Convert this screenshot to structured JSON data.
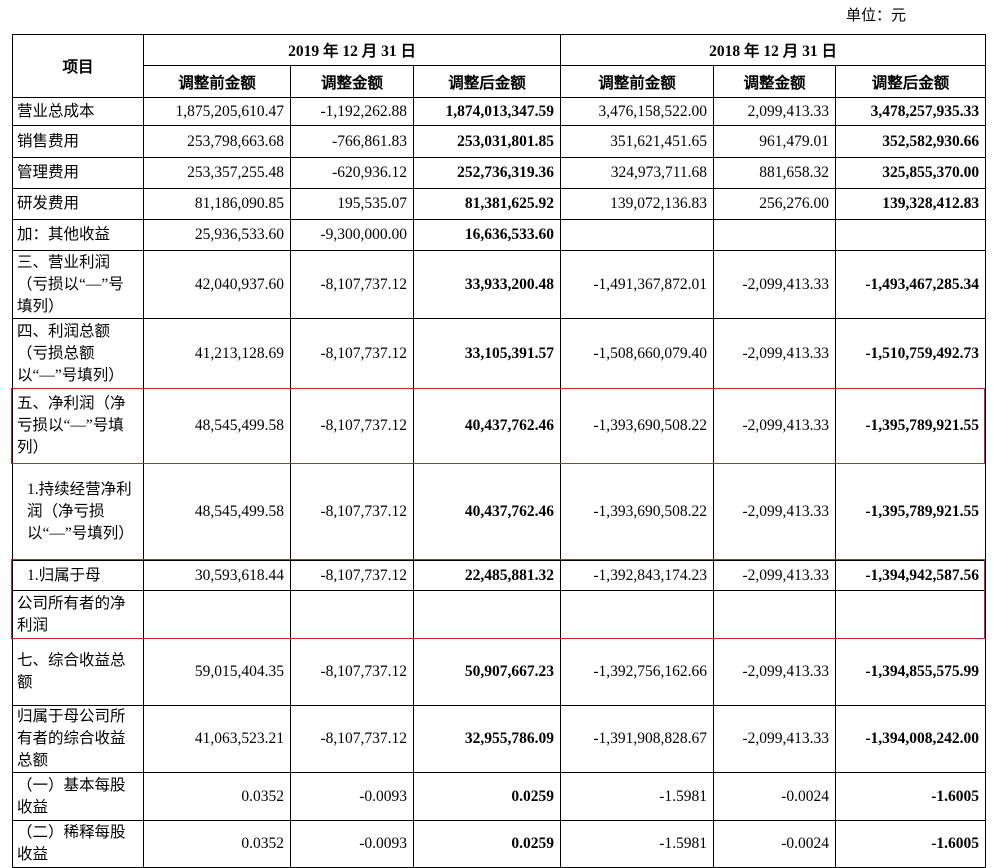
{
  "header": {
    "unit": "单位：元",
    "item": "项目",
    "periods": [
      {
        "label": "2019 年 12 月 31 日",
        "columns": [
          "调整前金额",
          "调整金额",
          "调整后金额"
        ]
      },
      {
        "label": "2018 年 12 月 31 日",
        "columns": [
          "调整前金额",
          "调整金额",
          "调整后金额"
        ]
      }
    ]
  },
  "table": {
    "rows": [
      {
        "label": "营业总成本",
        "values": [
          "1,875,205,610.47",
          "-1,192,262.88",
          "1,874,013,347.59",
          "3,476,158,522.00",
          "2,099,413.33",
          "3,478,257,935.33"
        ]
      },
      {
        "label": "销售费用",
        "values": [
          "253,798,663.68",
          "-766,861.83",
          "253,031,801.85",
          "351,621,451.65",
          "961,479.01",
          "352,582,930.66"
        ]
      },
      {
        "label": "管理费用",
        "values": [
          "253,357,255.48",
          "-620,936.12",
          "252,736,319.36",
          "324,973,711.68",
          "881,658.32",
          "325,855,370.00"
        ]
      },
      {
        "label": "研发费用",
        "values": [
          "81,186,090.85",
          "195,535.07",
          "81,381,625.92",
          "139,072,136.83",
          "256,276.00",
          "139,328,412.83"
        ]
      },
      {
        "label": "加：其他收益",
        "values": [
          "25,936,533.60",
          "-9,300,000.00",
          "16,636,533.60",
          null,
          null,
          null
        ]
      },
      {
        "label": "三、营业利润（亏损以“—”号填列）",
        "values": [
          "42,040,937.60",
          "-8,107,737.12",
          "33,933,200.48",
          "-1,491,367,872.01",
          "-2,099,413.33",
          "-1,493,467,285.34"
        ]
      },
      {
        "label": "四、利润总额（亏损总额以“—”号填列）",
        "values": [
          "41,213,128.69",
          "-8,107,737.12",
          "33,105,391.57",
          "-1,508,660,079.40",
          "-2,099,413.33",
          "-1,510,759,492.73"
        ]
      },
      {
        "label": "五、净利润（净亏损以“—”号填列）",
        "values": [
          "48,545,499.58",
          "-8,107,737.12",
          "40,437,762.46",
          "-1,393,690,508.22",
          "-2,099,413.33",
          "-1,395,789,921.55"
        ]
      },
      {
        "label": "1.持续经营净利润（净亏损以“—”号填列）",
        "values": [
          "48,545,499.58",
          "-8,107,737.12",
          "40,437,762.46",
          "-1,393,690,508.22",
          "-2,099,413.33",
          "-1,395,789,921.55"
        ]
      },
      {
        "label": "1.归属于母",
        "values": [
          "30,593,618.44",
          "-8,107,737.12",
          "22,485,881.32",
          "-1,392,843,174.23",
          "-2,099,413.33",
          "-1,394,942,587.56"
        ]
      },
      {
        "label": "公司所有者的净利润",
        "values": [
          null,
          null,
          null,
          null,
          null,
          null
        ]
      },
      {
        "label": "七、综合收益总额",
        "values": [
          "59,015,404.35",
          "-8,107,737.12",
          "50,907,667.23",
          "-1,392,756,162.66",
          "-2,099,413.33",
          "-1,394,855,575.99"
        ]
      },
      {
        "label": "归属于母公司所有者的综合收益总额",
        "values": [
          "41,063,523.21",
          "-8,107,737.12",
          "32,955,786.09",
          "-1,391,908,828.67",
          "-2,099,413.33",
          "-1,394,008,242.00"
        ]
      },
      {
        "label": "（一）基本每股收益",
        "values": [
          "0.0352",
          "-0.0093",
          "0.0259",
          "-1.5981",
          "-0.0024",
          "-1.6005"
        ]
      },
      {
        "label": "（二）稀释每股收益",
        "values": [
          "0.0352",
          "-0.0093",
          "0.0259",
          "-1.5981",
          "-0.0024",
          "-1.6005"
        ]
      }
    ]
  }
}
